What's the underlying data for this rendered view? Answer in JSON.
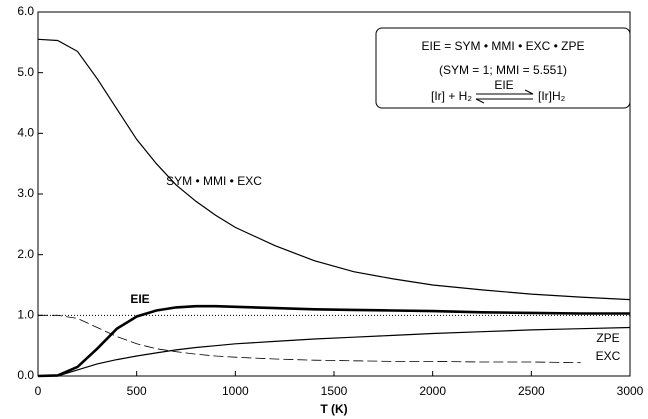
{
  "chart_data": {
    "type": "line",
    "xlabel": "T (K)",
    "x": [
      0,
      100,
      200,
      300,
      400,
      500,
      600,
      700,
      800,
      900,
      1000,
      1200,
      1400,
      1600,
      1800,
      2000,
      2250,
      2500,
      2750,
      3000
    ],
    "series": [
      {
        "name": "SYM • MMI • EXC",
        "color": "#000000",
        "values": [
          5.55,
          5.53,
          5.35,
          4.9,
          4.4,
          3.9,
          3.5,
          3.15,
          2.88,
          2.65,
          2.45,
          2.15,
          1.9,
          1.72,
          1.6,
          1.5,
          1.42,
          1.35,
          1.3,
          1.26
        ]
      },
      {
        "name": "EIE",
        "color": "#000000",
        "values": [
          0,
          0.01,
          0.15,
          0.45,
          0.78,
          0.98,
          1.08,
          1.13,
          1.15,
          1.15,
          1.14,
          1.12,
          1.1,
          1.09,
          1.08,
          1.07,
          1.05,
          1.04,
          1.03,
          1.03
        ]
      },
      {
        "name": "ZPE",
        "color": "#000000",
        "values": [
          0,
          0,
          0.1,
          0.2,
          0.27,
          0.33,
          0.38,
          0.43,
          0.47,
          0.5,
          0.53,
          0.57,
          0.61,
          0.64,
          0.67,
          0.7,
          0.73,
          0.76,
          0.78,
          0.8
        ]
      },
      {
        "name": "EXC",
        "color": "#000000",
        "values": [
          1.0,
          1.0,
          0.95,
          0.8,
          0.65,
          0.53,
          0.45,
          0.4,
          0.36,
          0.33,
          0.31,
          0.28,
          0.26,
          0.25,
          0.24,
          0.24,
          0.23,
          0.23,
          0.22,
          null
        ]
      }
    ],
    "reference_line": 1.0,
    "xlim": [
      0,
      3000
    ],
    "xticks": [
      0,
      500,
      1000,
      1500,
      2000,
      2500,
      3000
    ],
    "ylim": [
      0,
      6
    ],
    "yticks": [
      {
        "value": 0,
        "label": "0.0"
      },
      {
        "value": 1,
        "label": "1.0"
      },
      {
        "value": 2,
        "label": "2.0"
      },
      {
        "value": 3,
        "label": "3.0"
      },
      {
        "value": 4,
        "label": "4.0"
      },
      {
        "value": 5,
        "label": "5.0"
      },
      {
        "value": 6,
        "label": "6.0"
      }
    ],
    "annotation": {
      "equation": "EIE = SYM • MMI • EXC • ZPE",
      "constants": "(SYM = 1; MMI = 5.551)",
      "reaction": {
        "left": "[Ir] + H₂",
        "arrow_label": "EIE",
        "right": "[Ir]H₂"
      }
    }
  }
}
